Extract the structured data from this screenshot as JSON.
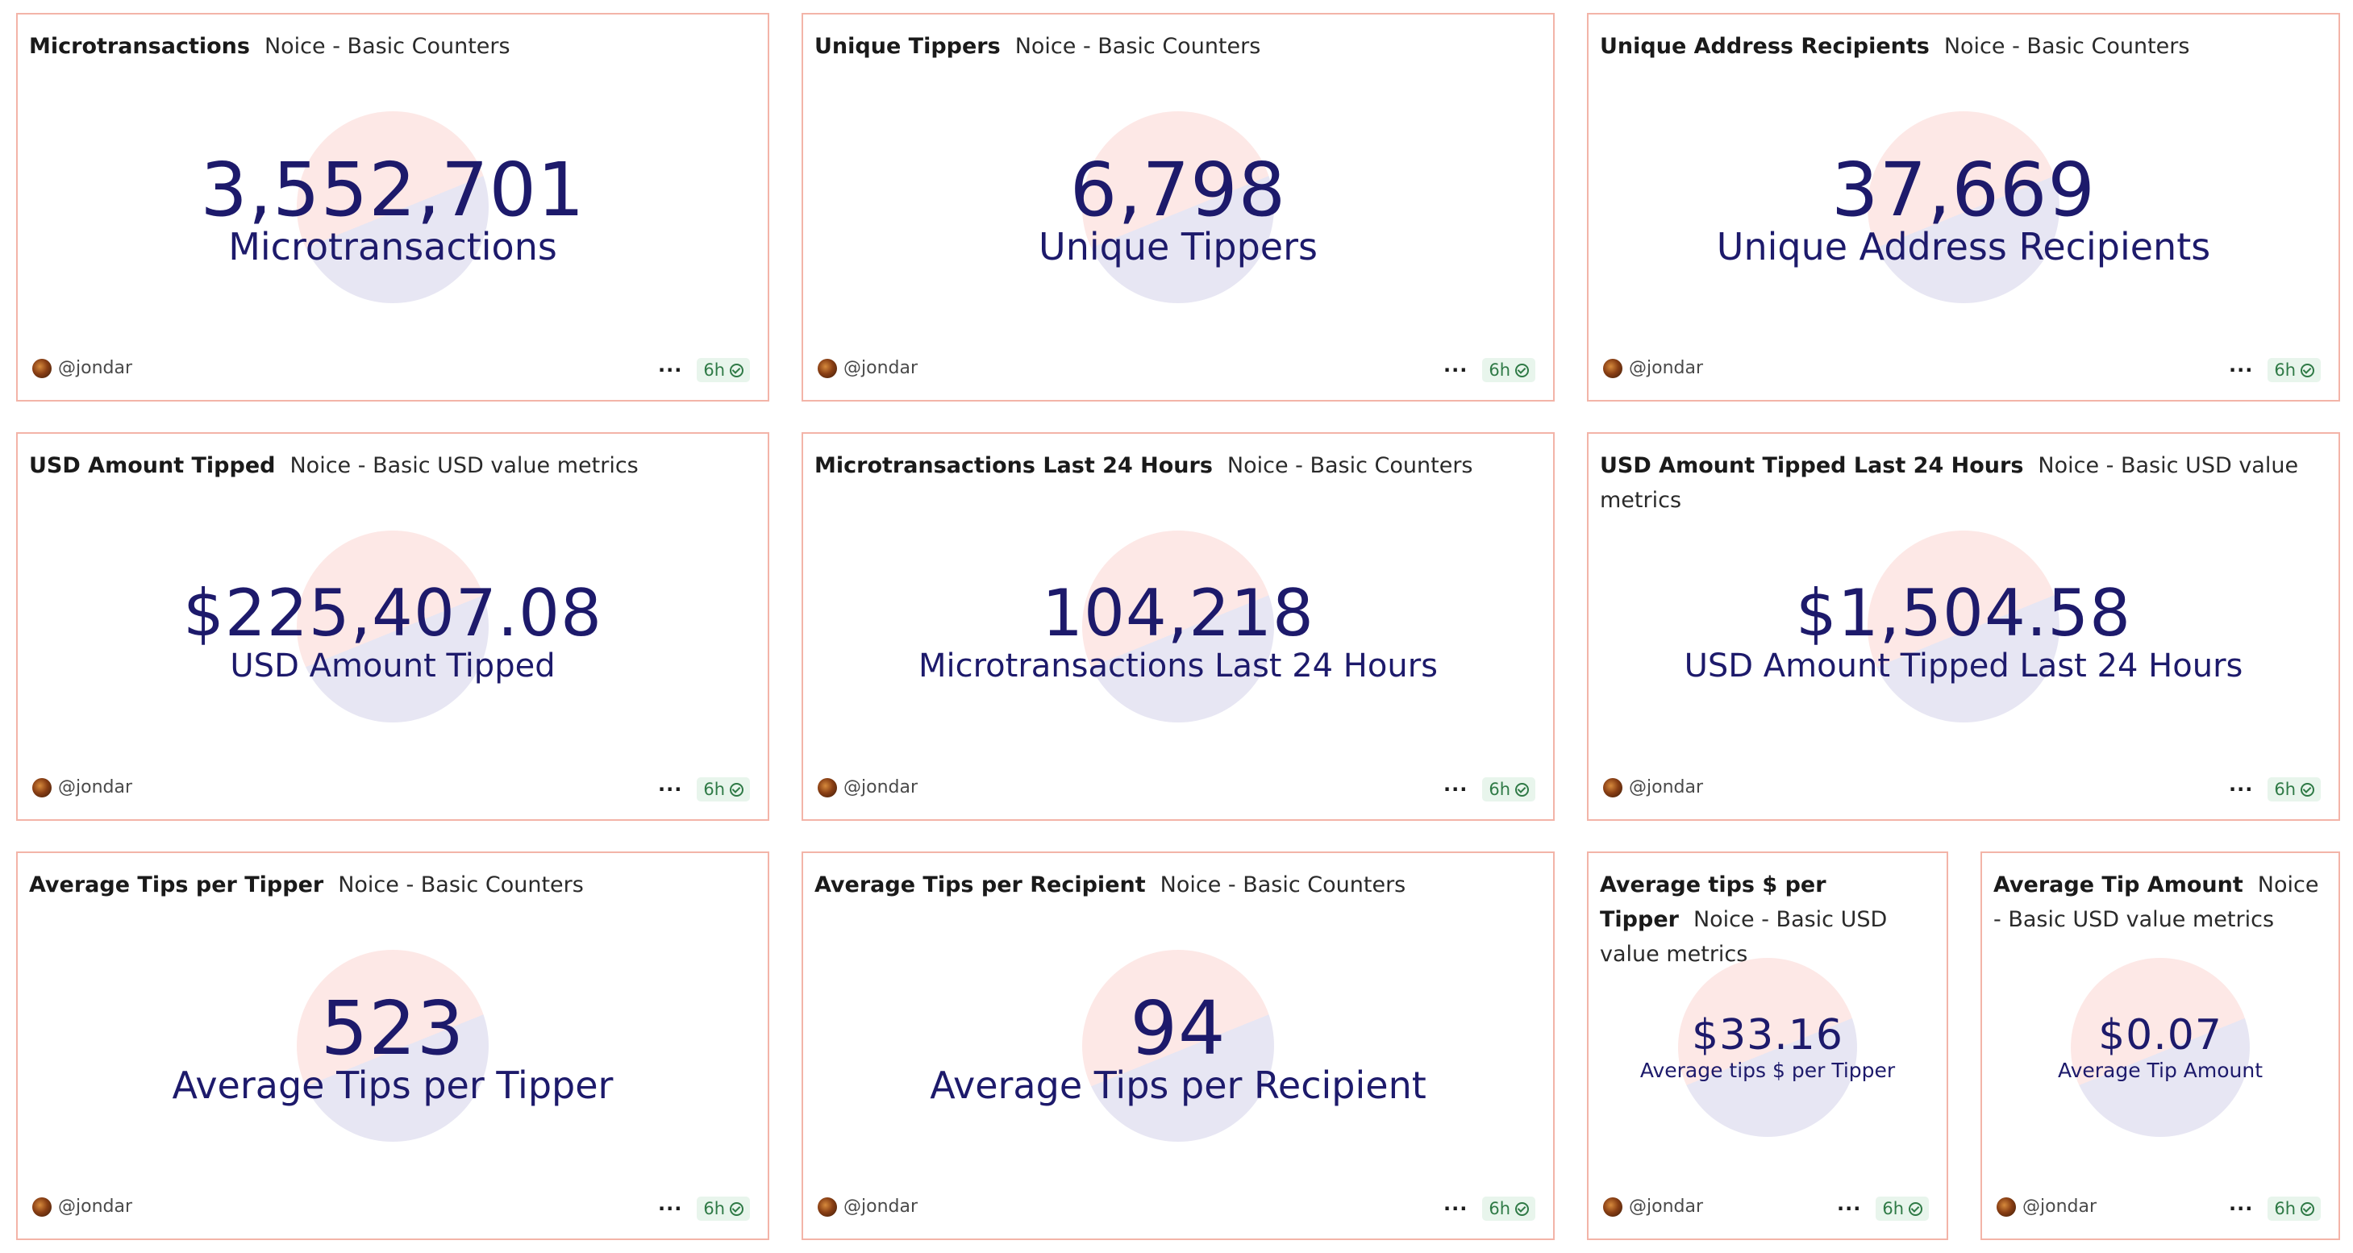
{
  "cards": [
    {
      "title": "Microtransactions",
      "subtitle": "Noice - Basic Counters",
      "value": "3,552,701",
      "label": "Microtransactions",
      "user": "@jondar",
      "age": "6h"
    },
    {
      "title": "Unique Tippers",
      "subtitle": "Noice - Basic Counters",
      "value": "6,798",
      "label": "Unique Tippers",
      "user": "@jondar",
      "age": "6h"
    },
    {
      "title": "Unique Address Recipients",
      "subtitle": "Noice - Basic Counters",
      "value": "37,669",
      "label": "Unique Address Recipients",
      "user": "@jondar",
      "age": "6h"
    },
    {
      "title": "USD Amount Tipped",
      "subtitle": "Noice - Basic USD value metrics",
      "value": "$225,407.08",
      "label": "USD Amount Tipped",
      "user": "@jondar",
      "age": "6h"
    },
    {
      "title": "Microtransactions Last 24 Hours",
      "subtitle": "Noice - Basic Counters",
      "value": "104,218",
      "label": "Microtransactions Last 24 Hours",
      "user": "@jondar",
      "age": "6h"
    },
    {
      "title": "USD Amount Tipped Last 24 Hours",
      "subtitle": "Noice - Basic USD value metrics",
      "value": "$1,504.58",
      "label": "USD Amount Tipped Last 24 Hours",
      "user": "@jondar",
      "age": "6h"
    },
    {
      "title": "Average Tips per Tipper",
      "subtitle": "Noice - Basic Counters",
      "value": "523",
      "label": "Average Tips per Tipper",
      "user": "@jondar",
      "age": "6h"
    },
    {
      "title": "Average Tips per Recipient",
      "subtitle": "Noice - Basic Counters",
      "value": "94",
      "label": "Average Tips per Recipient",
      "user": "@jondar",
      "age": "6h"
    },
    {
      "title": "Average tips $ per Tipper",
      "subtitle": "Noice - Basic USD value metrics",
      "value": "$33.16",
      "label": "Average tips $ per Tipper",
      "user": "@jondar",
      "age": "6h"
    },
    {
      "title": "Average Tip Amount",
      "subtitle": "Noice - Basic USD value metrics",
      "value": "$0.07",
      "label": "Average Tip Amount",
      "user": "@jondar",
      "age": "6h"
    }
  ],
  "icons": {
    "avatar": "user-avatar-icon",
    "more": "more-options-icon",
    "status": "check-circle-icon"
  },
  "colors": {
    "border": "#f3b4a8",
    "metric": "#1d1a6b",
    "badge_bg": "#e8f5ec",
    "badge_text": "#2f7a46"
  }
}
